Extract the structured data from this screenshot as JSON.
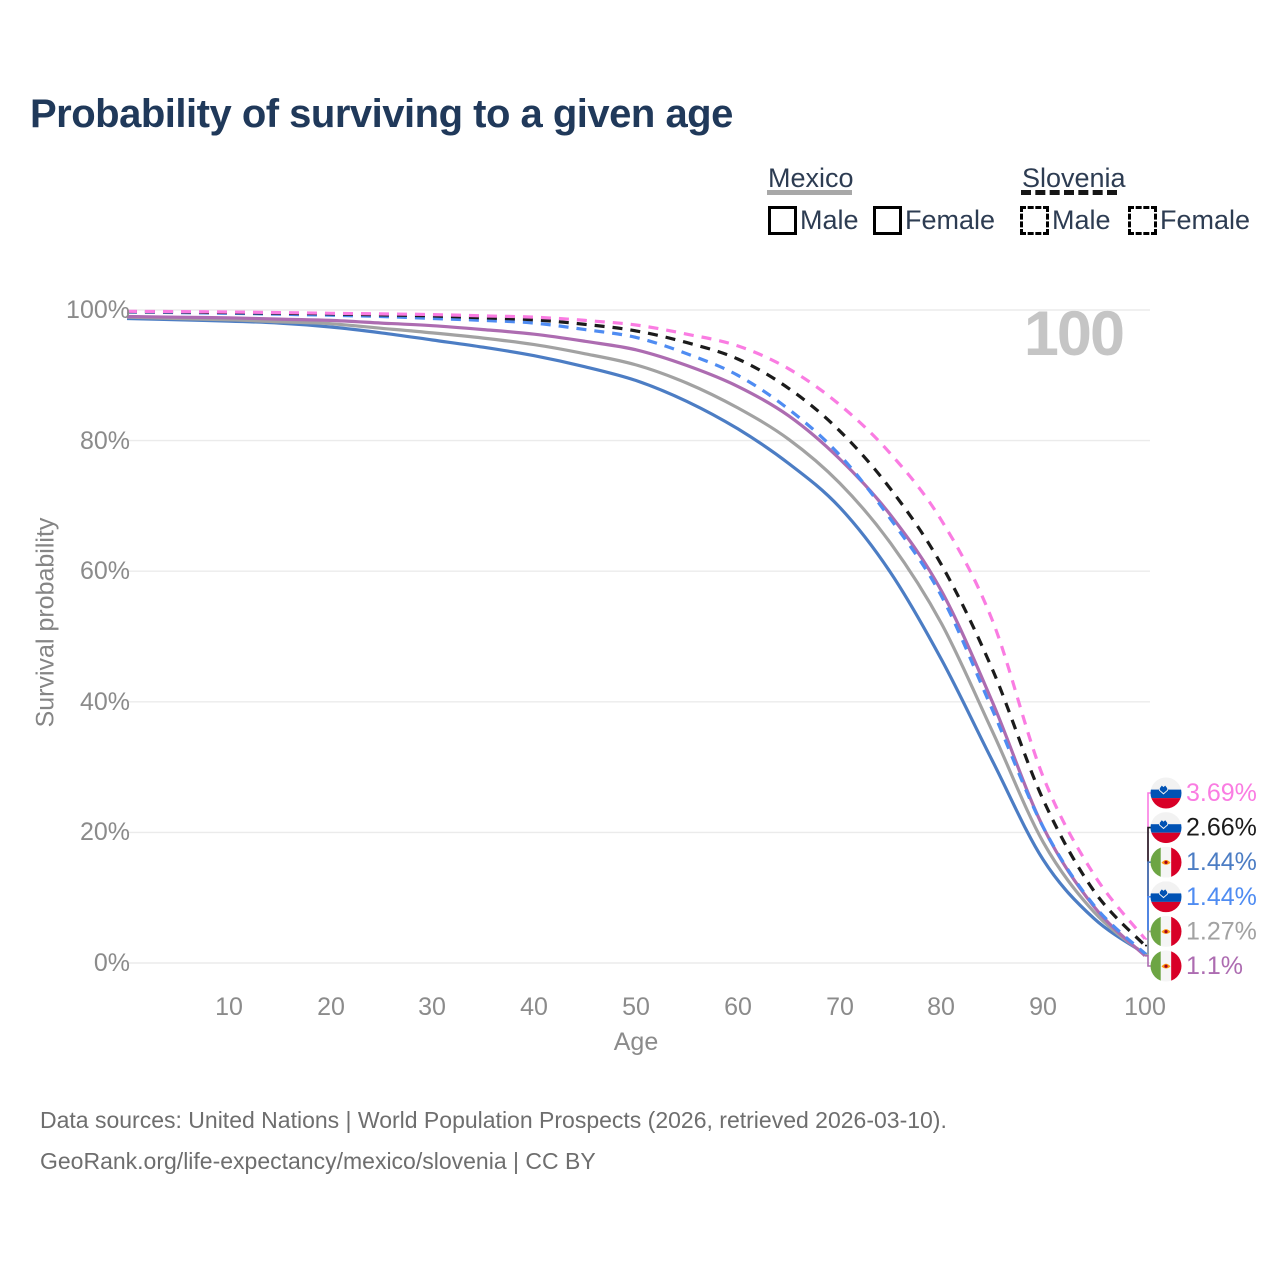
{
  "title": "Probability of surviving to a given age",
  "watermark": "100",
  "legend": {
    "position": "top-right",
    "groups": [
      {
        "label": "Mexico",
        "line_style": "solid",
        "swatch_color": "#a8a8a8",
        "items": [
          {
            "label": "Male",
            "color": "#4c7dc4"
          },
          {
            "label": "Female",
            "color": "#ad6cb1"
          }
        ]
      },
      {
        "label": "Slovenia",
        "line_style": "dashed",
        "swatch_color": "#161616",
        "items": [
          {
            "label": "Male",
            "color": "#4f8cf2"
          },
          {
            "label": "Female",
            "color": "#fa7ce2"
          }
        ]
      }
    ]
  },
  "axes": {
    "y_title": "Survival probability",
    "x_title": "Age",
    "y_ticks": [
      {
        "label": "100%",
        "pct": 100
      },
      {
        "label": "80%",
        "pct": 80
      },
      {
        "label": "60%",
        "pct": 60
      },
      {
        "label": "40%",
        "pct": 40
      },
      {
        "label": "20%",
        "pct": 20
      },
      {
        "label": "0%",
        "pct": 0
      }
    ],
    "x_ticks": [
      10,
      20,
      30,
      40,
      50,
      60,
      70,
      80,
      90,
      100
    ]
  },
  "end_labels": [
    {
      "series": "slovenia-female",
      "value": "3.69%",
      "flag": "slovenia",
      "color": "#fa7ce2",
      "end_pct": 3.69
    },
    {
      "series": "slovenia-total",
      "value": "2.66%",
      "flag": "slovenia",
      "color": "#1b1b1b",
      "end_pct": 2.66
    },
    {
      "series": "mexico-male",
      "value": "1.44%",
      "flag": "mexico",
      "color": "#4c7dc4",
      "end_pct": 1.44
    },
    {
      "series": "slovenia-male",
      "value": "1.44%",
      "flag": "slovenia",
      "color": "#4f8cf2",
      "end_pct": 1.44
    },
    {
      "series": "mexico-total",
      "value": "1.27%",
      "flag": "mexico",
      "color": "#a2a2a2",
      "end_pct": 1.27
    },
    {
      "series": "mexico-female",
      "value": "1.1%",
      "flag": "mexico",
      "color": "#ad6cb1",
      "end_pct": 1.1
    }
  ],
  "footer": {
    "line1": "Data sources: United Nations | World Population Prospects (2026, retrieved 2026-03-10).",
    "line2": "GeoRank.org/life-expectancy/mexico/slovenia | CC BY"
  },
  "colors": {
    "title": "#20395a",
    "grid": "#ebebeb",
    "tick_text": "#8b8b8b",
    "watermark": "#c5c5c5"
  },
  "chart_data": {
    "type": "line",
    "title": "Probability of surviving to a given age",
    "xlabel": "Age",
    "ylabel": "Survival probability",
    "x_range": [
      0,
      100
    ],
    "y_range_pct": [
      0,
      100
    ],
    "grid": "horizontal-only",
    "legend_position": "top-right",
    "series": [
      {
        "id": "mexico-male",
        "name": "Mexico Male",
        "color": "#4c7dc4",
        "dash": false,
        "points": [
          [
            0,
            98.7
          ],
          [
            5,
            98.5
          ],
          [
            10,
            98.3
          ],
          [
            15,
            98.0
          ],
          [
            20,
            97.4
          ],
          [
            25,
            96.5
          ],
          [
            30,
            95.4
          ],
          [
            35,
            94.3
          ],
          [
            40,
            93.0
          ],
          [
            45,
            91.3
          ],
          [
            50,
            89.2
          ],
          [
            55,
            86.0
          ],
          [
            60,
            81.8
          ],
          [
            65,
            76.5
          ],
          [
            70,
            69.8
          ],
          [
            75,
            59.8
          ],
          [
            80,
            46.5
          ],
          [
            85,
            31.0
          ],
          [
            90,
            15.8
          ],
          [
            95,
            6.8
          ],
          [
            100,
            1.44
          ]
        ]
      },
      {
        "id": "mexico-total",
        "name": "Mexico Total",
        "color": "#a2a2a2",
        "dash": false,
        "points": [
          [
            0,
            98.9
          ],
          [
            5,
            98.7
          ],
          [
            10,
            98.5
          ],
          [
            15,
            98.2
          ],
          [
            20,
            97.9
          ],
          [
            25,
            97.2
          ],
          [
            30,
            96.5
          ],
          [
            35,
            95.7
          ],
          [
            40,
            94.7
          ],
          [
            45,
            93.3
          ],
          [
            50,
            91.6
          ],
          [
            55,
            88.8
          ],
          [
            60,
            85.0
          ],
          [
            65,
            80.2
          ],
          [
            70,
            73.5
          ],
          [
            75,
            64.3
          ],
          [
            80,
            52.0
          ],
          [
            85,
            35.5
          ],
          [
            90,
            18.5
          ],
          [
            95,
            7.8
          ],
          [
            100,
            1.27
          ]
        ]
      },
      {
        "id": "mexico-female",
        "name": "Mexico Female",
        "color": "#ad6cb1",
        "dash": false,
        "points": [
          [
            0,
            99.0
          ],
          [
            5,
            98.9
          ],
          [
            10,
            98.8
          ],
          [
            15,
            98.6
          ],
          [
            20,
            98.4
          ],
          [
            25,
            98.0
          ],
          [
            30,
            97.6
          ],
          [
            35,
            97.0
          ],
          [
            40,
            96.3
          ],
          [
            45,
            95.2
          ],
          [
            50,
            93.9
          ],
          [
            55,
            91.5
          ],
          [
            60,
            88.3
          ],
          [
            65,
            83.8
          ],
          [
            70,
            77.2
          ],
          [
            75,
            68.6
          ],
          [
            80,
            57.0
          ],
          [
            85,
            40.0
          ],
          [
            90,
            20.8
          ],
          [
            95,
            8.6
          ],
          [
            100,
            1.1
          ]
        ]
      },
      {
        "id": "slovenia-male",
        "name": "Slovenia Male",
        "color": "#4f8cf2",
        "dash": true,
        "points": [
          [
            0,
            99.7
          ],
          [
            5,
            99.6
          ],
          [
            10,
            99.5
          ],
          [
            15,
            99.35
          ],
          [
            20,
            99.2
          ],
          [
            25,
            99.0
          ],
          [
            30,
            98.7
          ],
          [
            35,
            98.4
          ],
          [
            40,
            98.0
          ],
          [
            45,
            97.0
          ],
          [
            50,
            95.8
          ],
          [
            55,
            93.3
          ],
          [
            60,
            90.0
          ],
          [
            65,
            84.8
          ],
          [
            70,
            77.8
          ],
          [
            75,
            68.0
          ],
          [
            80,
            56.2
          ],
          [
            85,
            38.8
          ],
          [
            90,
            20.8
          ],
          [
            95,
            8.8
          ],
          [
            100,
            1.44
          ]
        ]
      },
      {
        "id": "slovenia-total",
        "name": "Slovenia Total",
        "color": "#1b1b1b",
        "dash": true,
        "points": [
          [
            0,
            99.75
          ],
          [
            5,
            99.7
          ],
          [
            10,
            99.6
          ],
          [
            15,
            99.5
          ],
          [
            20,
            99.4
          ],
          [
            25,
            99.25
          ],
          [
            30,
            99.1
          ],
          [
            35,
            98.8
          ],
          [
            40,
            98.5
          ],
          [
            45,
            97.8
          ],
          [
            50,
            96.8
          ],
          [
            55,
            95.0
          ],
          [
            60,
            92.5
          ],
          [
            65,
            88.0
          ],
          [
            70,
            81.5
          ],
          [
            75,
            72.6
          ],
          [
            80,
            61.0
          ],
          [
            85,
            45.0
          ],
          [
            90,
            25.0
          ],
          [
            95,
            11.0
          ],
          [
            100,
            2.66
          ]
        ]
      },
      {
        "id": "slovenia-female",
        "name": "Slovenia Female",
        "color": "#fa7ce2",
        "dash": true,
        "points": [
          [
            0,
            99.8
          ],
          [
            5,
            99.75
          ],
          [
            10,
            99.7
          ],
          [
            15,
            99.6
          ],
          [
            20,
            99.5
          ],
          [
            25,
            99.4
          ],
          [
            30,
            99.3
          ],
          [
            35,
            99.1
          ],
          [
            40,
            98.9
          ],
          [
            45,
            98.4
          ],
          [
            50,
            97.7
          ],
          [
            55,
            96.3
          ],
          [
            60,
            94.5
          ],
          [
            65,
            91.0
          ],
          [
            70,
            85.5
          ],
          [
            75,
            78.0
          ],
          [
            80,
            67.8
          ],
          [
            85,
            52.5
          ],
          [
            90,
            28.5
          ],
          [
            95,
            13.5
          ],
          [
            100,
            3.69
          ]
        ]
      }
    ]
  }
}
